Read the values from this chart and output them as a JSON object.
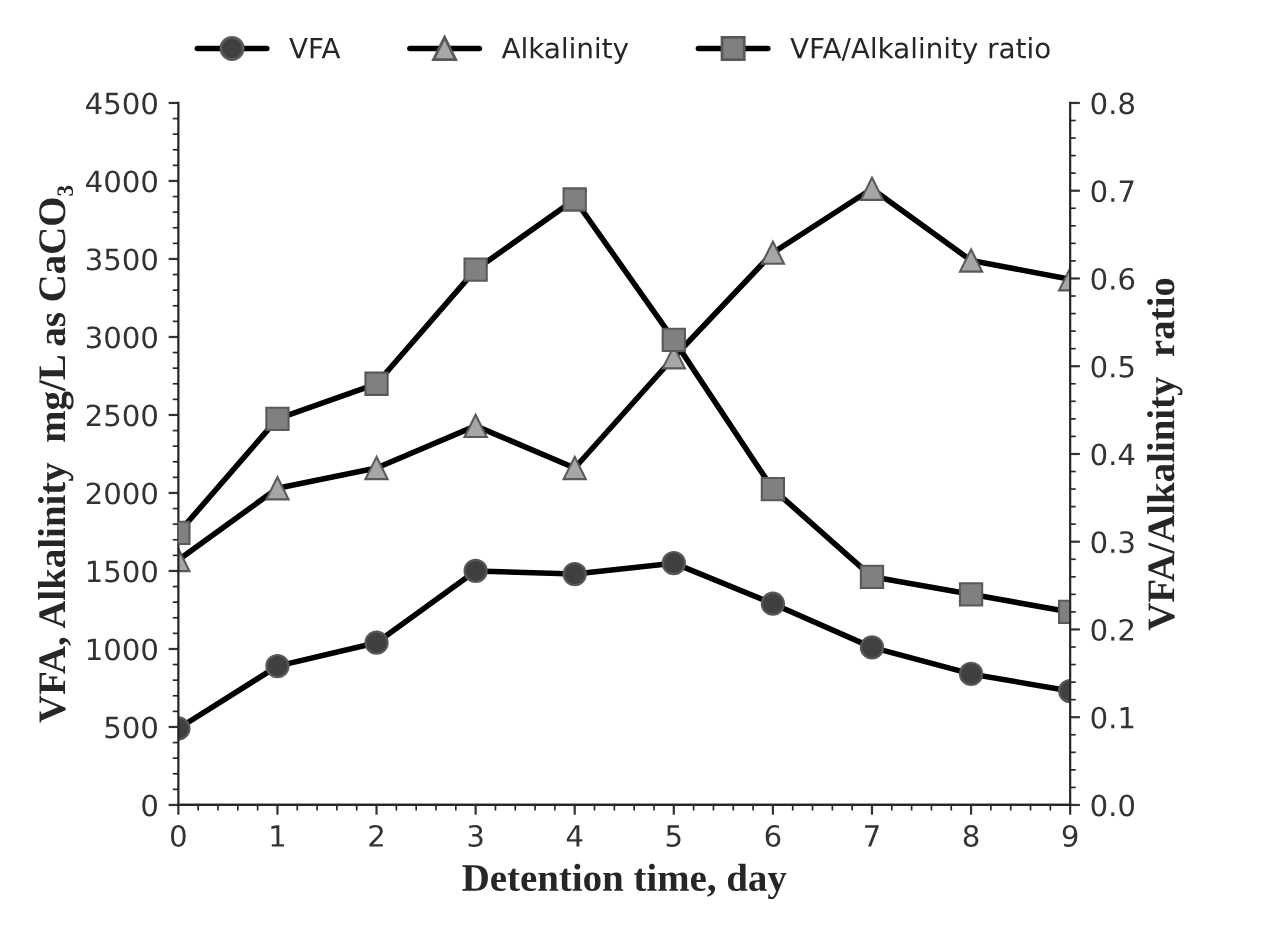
{
  "chart_data": {
    "type": "line",
    "xlabel": "Detention time, day",
    "ylabel": "VFA, Alkalinity  mg/L as CaCO₃",
    "y2label": "VFA/Alkalinity  ratio",
    "x": [
      0,
      1,
      2,
      3,
      4,
      5,
      6,
      7,
      8,
      9
    ],
    "series": [
      {
        "name": "VFA",
        "color": "#404040",
        "marker": "circle",
        "values": [
          490,
          890,
          1040,
          1500,
          1480,
          1550,
          1290,
          1010,
          840,
          730
        ]
      },
      {
        "name": "Alkalinity",
        "color": "#a6a6a6",
        "marker": "triangle",
        "values": [
          1570,
          2030,
          2160,
          2430,
          2160,
          2870,
          3540,
          3950,
          3490,
          3370
        ]
      },
      {
        "name": "VFA/Alkalinity ratio",
        "color": "#808080",
        "marker": "square",
        "axis": "y2",
        "values": [
          0.31,
          0.44,
          0.48,
          0.61,
          0.69,
          0.53,
          0.36,
          0.26,
          0.24,
          0.22
        ]
      }
    ],
    "xlim": [
      0,
      9
    ],
    "xticks": [
      0,
      1,
      2,
      3,
      4,
      5,
      6,
      7,
      8,
      9
    ],
    "ylim": [
      0,
      4500
    ],
    "yticks": [
      0,
      500,
      1000,
      1500,
      2000,
      2500,
      3000,
      3500,
      4000,
      4500
    ],
    "y2lim": [
      0,
      0.8
    ],
    "y2ticks": [
      {
        "value": 0,
        "label": "0.0"
      },
      {
        "value": 0.1,
        "label": "0.1"
      },
      {
        "value": 0.2,
        "label": "0.2"
      },
      {
        "value": 0.3,
        "label": "0.3"
      },
      {
        "value": 0.4,
        "label": "0.4"
      },
      {
        "value": 0.5,
        "label": "0.5"
      },
      {
        "value": 0.6,
        "label": "0.6"
      },
      {
        "value": 0.7,
        "label": "0.7"
      },
      {
        "value": 0.8,
        "label": "0.8"
      }
    ],
    "legend": "top",
    "grid": false
  }
}
